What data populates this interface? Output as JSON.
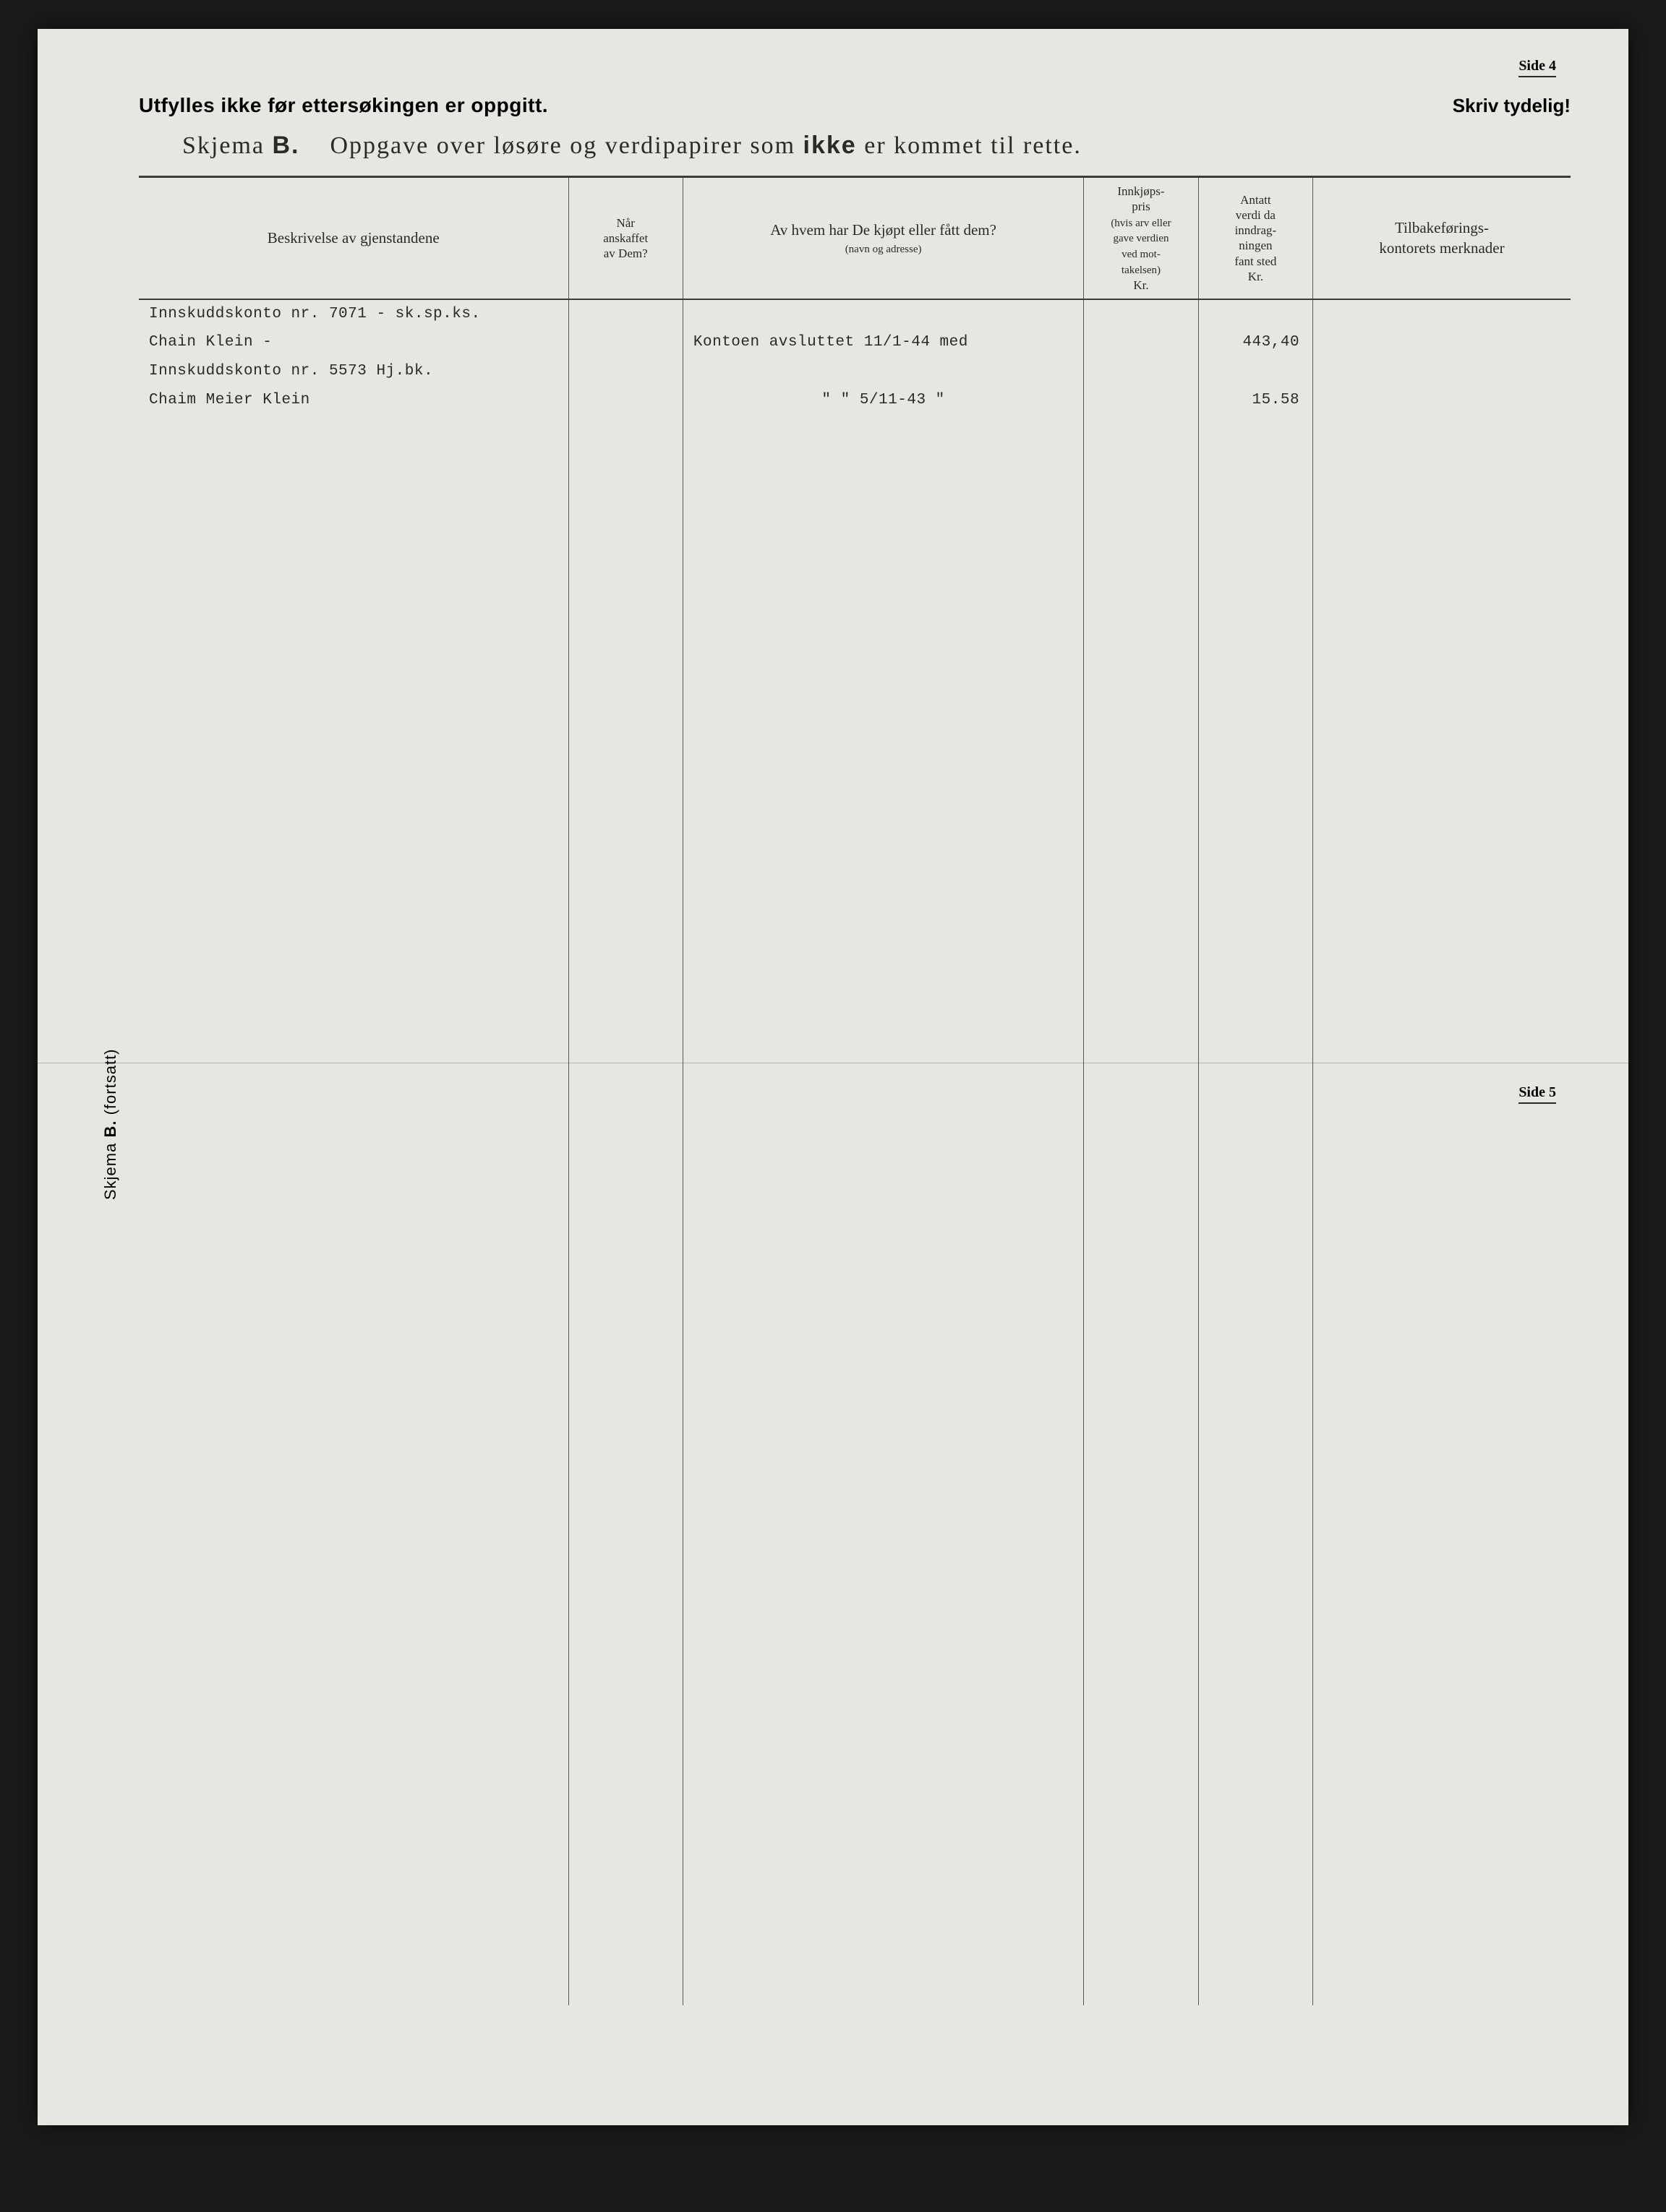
{
  "page_labels": {
    "side_top": "Side 4",
    "side_mid": "Side 5"
  },
  "header": {
    "left": "Utfylles ikke før ettersøkingen er oppgitt.",
    "right": "Skriv tydelig!"
  },
  "title": {
    "prefix": "Skjema",
    "letter": "B.",
    "mid": "Oppgave over løsøre og verdipapirer som",
    "emph": "ikke",
    "suffix": "er kommet til rette."
  },
  "columns": {
    "c1": "Beskrivelse av gjenstandene",
    "c2_l1": "Når",
    "c2_l2": "anskaffet",
    "c2_l3": "av Dem?",
    "c3_l1": "Av hvem har De kjøpt eller fått dem?",
    "c3_l2": "(navn og adresse)",
    "c4_l1": "Innkjøps-",
    "c4_l2": "pris",
    "c4_l3": "(hvis arv eller",
    "c4_l4": "gave verdien",
    "c4_l5": "ved mot-",
    "c4_l6": "takelsen)",
    "c4_l7": "Kr.",
    "c5_l1": "Antatt",
    "c5_l2": "verdi da",
    "c5_l3": "inndrag-",
    "c5_l4": "ningen",
    "c5_l5": "fant sted",
    "c5_l6": "Kr.",
    "c6_l1": "Tilbakeførings-",
    "c6_l2": "kontorets merknader"
  },
  "rows": [
    {
      "desc": "Innskuddskonto nr. 7071 - sk.sp.ks.",
      "when": "",
      "from": "",
      "price": "",
      "value": "",
      "note": ""
    },
    {
      "desc": "Chain Klein -",
      "when": "",
      "from": "Kontoen avsluttet 11/1-44 med",
      "price": "",
      "value": "443,40",
      "note": ""
    },
    {
      "desc": "Innskuddskonto nr. 5573 Hj.bk.",
      "when": "",
      "from": "",
      "price": "",
      "value": "",
      "note": ""
    },
    {
      "desc": "Chaim Meier Klein",
      "when": "",
      "from": "\"          \"        5/11-43   \"",
      "price": "",
      "value": "15.58",
      "note": ""
    }
  ],
  "rotated": {
    "prefix": "Skjema",
    "letter": "B.",
    "suffix": "(fortsatt)"
  },
  "style": {
    "page_bg": "#e8e6e0",
    "ink": "#2a2a2a",
    "rule_heavy": "#3a3a3a",
    "rule_light": "#5a5a54",
    "typed_font": "Courier New"
  }
}
